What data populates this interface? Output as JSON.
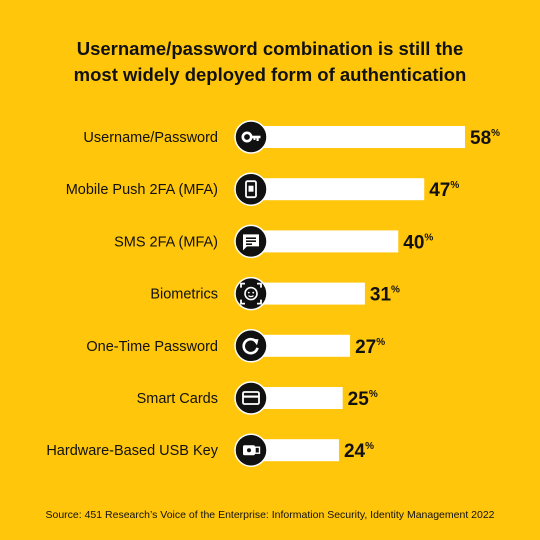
{
  "title": {
    "line1": "Username/password combination is still the",
    "line2": "most widely deployed form of authentication"
  },
  "source": "Source: 451 Research’s Voice of the Enterprise: Information Security, Identity Management 2022",
  "colors": {
    "background": "#FFC60B",
    "bar": "#FFFFFF",
    "icon_bg": "#111111",
    "text": "#111111"
  },
  "chart_data": {
    "type": "bar",
    "orientation": "horizontal",
    "unit": "%",
    "categories": [
      "Username/Password",
      "Mobile Push 2FA (MFA)",
      "SMS 2FA (MFA)",
      "Biometrics",
      "One-Time Password",
      "Smart Cards",
      "Hardware-Based USB Key"
    ],
    "values": [
      58,
      47,
      40,
      31,
      27,
      25,
      24
    ],
    "icons": [
      "key-icon",
      "mobile-phone-icon",
      "chat-message-icon",
      "face-scan-icon",
      "refresh-icon",
      "credit-card-icon",
      "usb-key-icon"
    ],
    "xlim": [
      0,
      58
    ],
    "grid": false,
    "legend": "none"
  }
}
